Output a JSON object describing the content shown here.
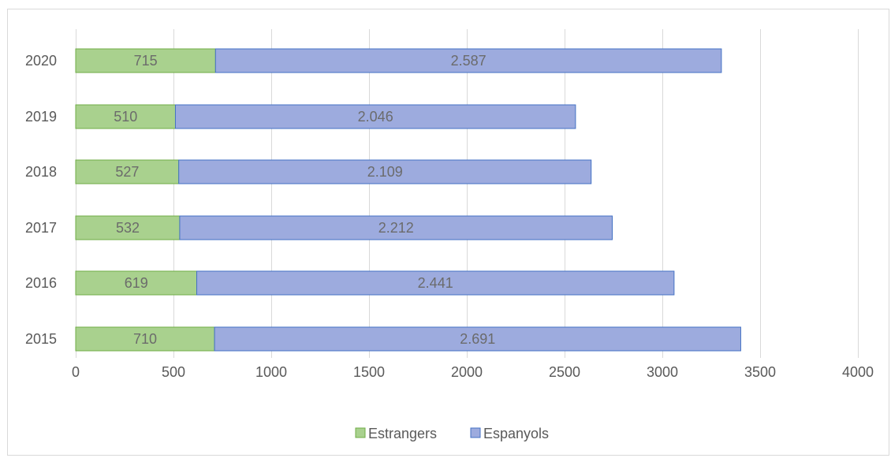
{
  "chart_data": {
    "type": "bar",
    "orientation": "horizontal",
    "stacked": true,
    "categories": [
      "2020",
      "2019",
      "2018",
      "2017",
      "2016",
      "2015"
    ],
    "series": [
      {
        "name": "Estrangers",
        "values": [
          715,
          510,
          527,
          532,
          619,
          710
        ],
        "labels": [
          "715",
          "510",
          "527",
          "532",
          "619",
          "710"
        ],
        "color": "#a9d18e",
        "stroke": "#70ad47"
      },
      {
        "name": "Espanyols",
        "values": [
          2587,
          2046,
          2109,
          2212,
          2441,
          2691
        ],
        "labels": [
          "2.587",
          "2.046",
          "2.109",
          "2.212",
          "2.441",
          "2.691"
        ],
        "color": "#9dabde",
        "stroke": "#4472c4"
      }
    ],
    "xlim": [
      0,
      4000
    ],
    "xticks": [
      "0",
      "500",
      "1000",
      "1500",
      "2000",
      "2500",
      "3000",
      "3500",
      "4000"
    ],
    "grid": true,
    "legend": "bottom"
  }
}
